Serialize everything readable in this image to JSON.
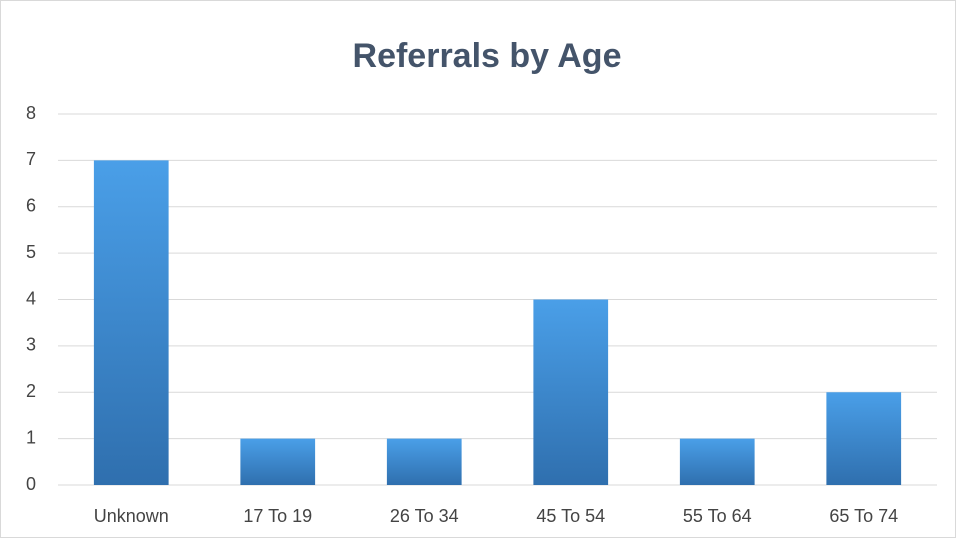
{
  "chart_data": {
    "type": "bar",
    "title": "Referrals by Age",
    "categories": [
      "Unknown",
      "17 To 19",
      "26 To 34",
      "45 To 54",
      "55 To 64",
      "65 To 74"
    ],
    "values": [
      7,
      1,
      1,
      4,
      1,
      2
    ],
    "color": "#3b82cc",
    "ylim": [
      0,
      8
    ],
    "yticks": [
      0,
      1,
      2,
      3,
      4,
      5,
      6,
      7,
      8
    ],
    "grid": true
  }
}
